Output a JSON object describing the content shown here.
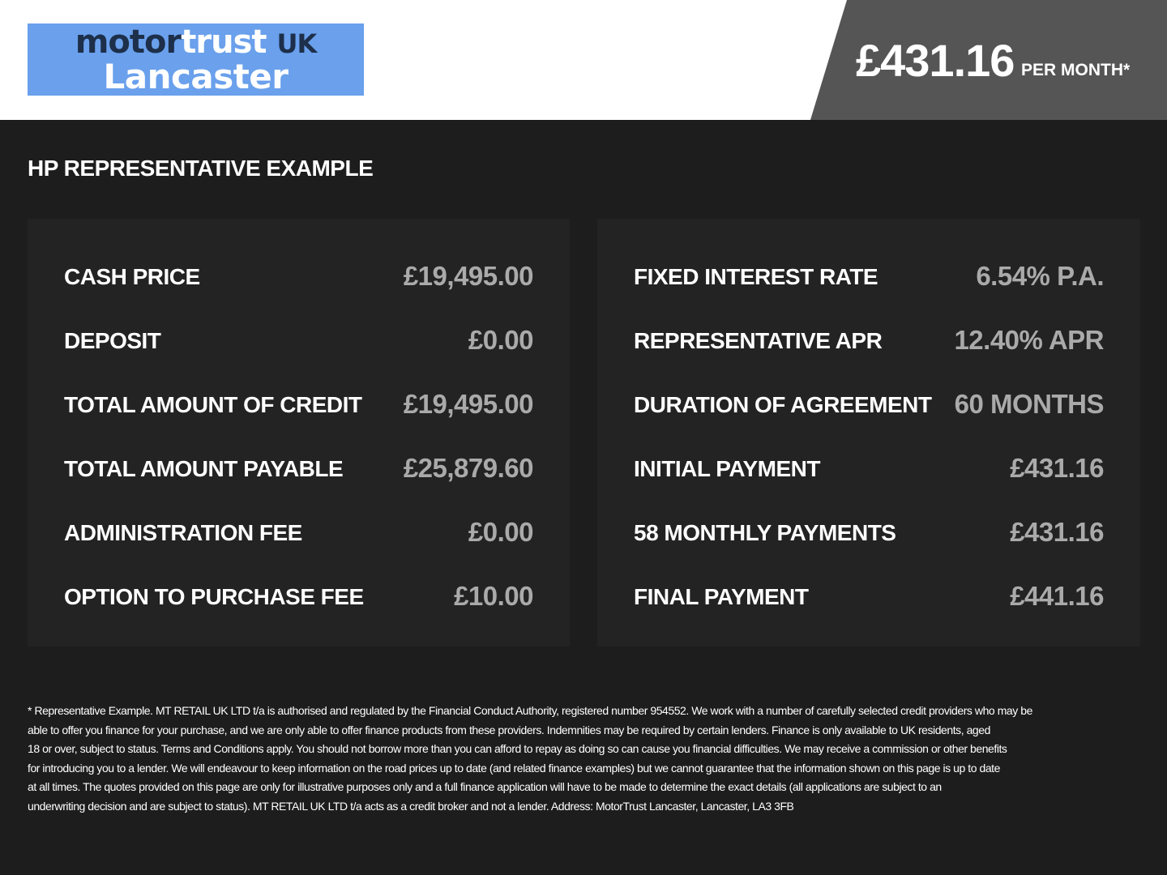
{
  "logo": {
    "part1": "motor",
    "part2": "trust",
    "part3": "UK",
    "line2": "Lancaster"
  },
  "price": {
    "amount": "£431.16",
    "suffix": "PER MONTH*"
  },
  "title": "HP REPRESENTATIVE EXAMPLE",
  "left_rows": [
    {
      "label": "CASH PRICE",
      "value": "£19,495.00"
    },
    {
      "label": "DEPOSIT",
      "value": "£0.00"
    },
    {
      "label": "TOTAL AMOUNT OF CREDIT",
      "value": "£19,495.00"
    },
    {
      "label": "TOTAL AMOUNT PAYABLE",
      "value": "£25,879.60"
    },
    {
      "label": "ADMINISTRATION FEE",
      "value": "£0.00"
    },
    {
      "label": "OPTION TO PURCHASE FEE",
      "value": "£10.00"
    }
  ],
  "right_rows": [
    {
      "label": "FIXED INTEREST RATE",
      "value": "6.54% P.A."
    },
    {
      "label": "REPRESENTATIVE APR",
      "value": "12.40% APR"
    },
    {
      "label": "DURATION OF AGREEMENT",
      "value": "60 MONTHS"
    },
    {
      "label": "INITIAL PAYMENT",
      "value": "£431.16"
    },
    {
      "label": "58 MONTHLY PAYMENTS",
      "value": "£431.16"
    },
    {
      "label": "FINAL PAYMENT",
      "value": "£441.16"
    }
  ],
  "disclaimer": [
    "* Representative Example. MT RETAIL UK LTD t/a is authorised and regulated by the Financial Conduct Authority, registered number 954552. We work with a number of carefully selected credit providers who may be",
    "able to offer you finance for your purchase, and we are only able to offer finance products from these providers. Indemnities may be required by certain lenders. Finance is only available to UK residents, aged",
    "18 or over, subject to status. Terms and Conditions apply. You should not borrow more than you can afford to repay as doing so can cause you financial difficulties. We may receive a commission or other benefits",
    "for introducing you to a lender. We will endeavour to keep information on the road prices up to date (and related finance examples) but we cannot guarantee that the information shown on this page is up to date",
    "at all times. The quotes provided on this page are only for illustrative purposes only and a full finance application will have to be made to determine the exact details (all applications are subject to an",
    "underwriting decision and are subject to status). MT RETAIL UK LTD t/a acts as a credit broker and not a lender. Address: MotorTrust Lancaster, Lancaster, LA3 3FB"
  ]
}
